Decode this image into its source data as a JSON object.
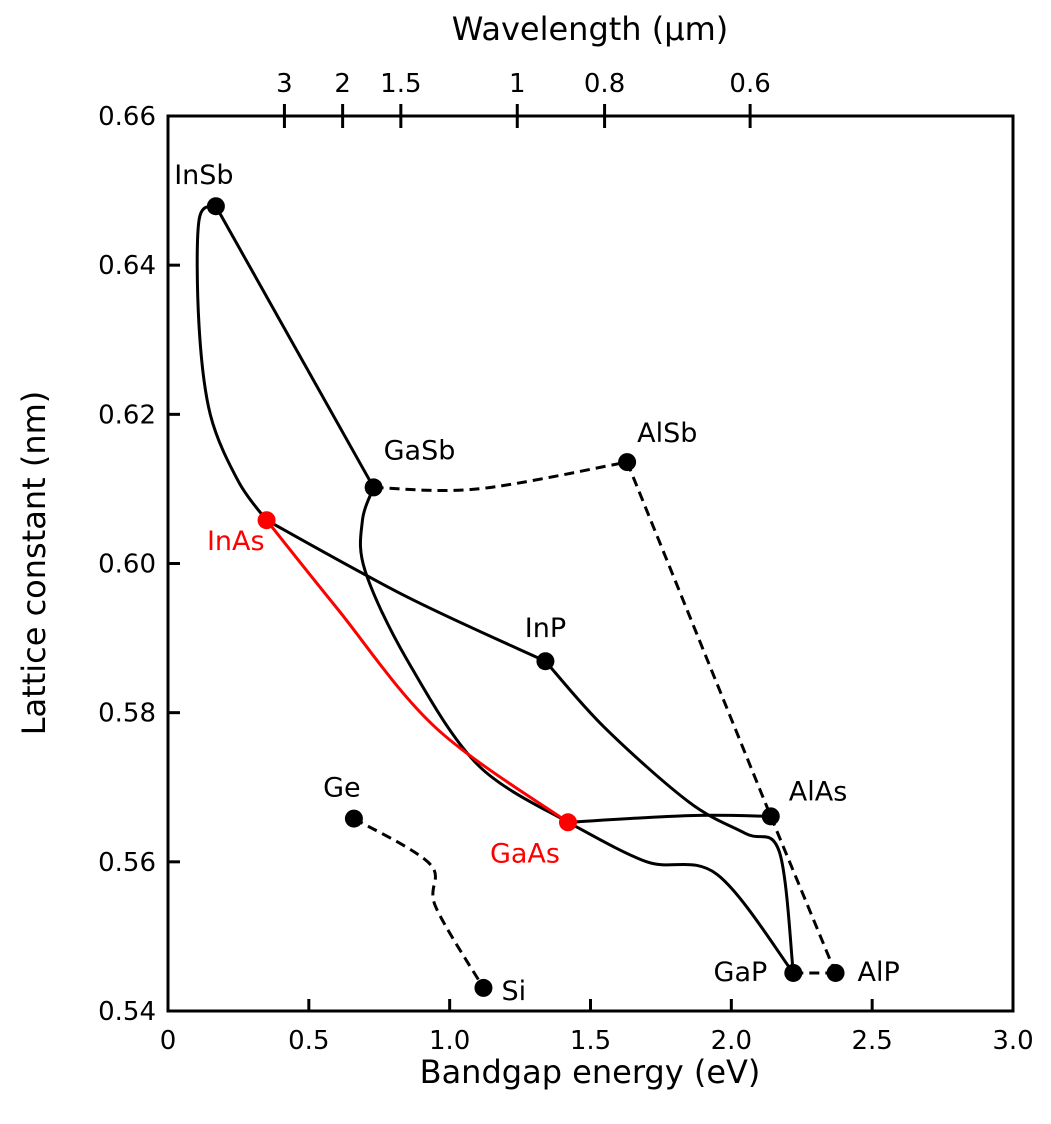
{
  "chart_data": {
    "type": "scatter",
    "xlabel": "Bandgap energy (eV)",
    "ylabel": "Lattice constant (nm)",
    "x2label": "Wavelength (μm)",
    "xlim": [
      0,
      3.0
    ],
    "ylim": [
      0.54,
      0.66
    ],
    "xticks": [
      0,
      0.5,
      1.0,
      1.5,
      2.0,
      2.5,
      3.0
    ],
    "xtick_labels": [
      "0",
      "0.5",
      "1.0",
      "1.5",
      "2.0",
      "2.5",
      "3.0"
    ],
    "yticks": [
      0.54,
      0.56,
      0.58,
      0.6,
      0.62,
      0.64,
      0.66
    ],
    "ytick_labels": [
      "0.54",
      "0.56",
      "0.58",
      "0.60",
      "0.62",
      "0.64",
      "0.66"
    ],
    "x2ticks": [
      3,
      2,
      1.5,
      1,
      0.8,
      0.6
    ],
    "x2tick_labels": [
      "3",
      "2",
      "1.5",
      "1",
      "0.8",
      "0.6"
    ],
    "grid": false,
    "points": [
      {
        "label": "InSb",
        "x": 0.17,
        "y": 0.6479,
        "color": "#000000"
      },
      {
        "label": "GaSb",
        "x": 0.73,
        "y": 0.6102,
        "color": "#000000"
      },
      {
        "label": "AlSb",
        "x": 1.63,
        "y": 0.6136,
        "color": "#000000"
      },
      {
        "label": "InAs",
        "x": 0.35,
        "y": 0.6058,
        "color": "#ff0000"
      },
      {
        "label": "InP",
        "x": 1.34,
        "y": 0.5869,
        "color": "#000000"
      },
      {
        "label": "GaAs",
        "x": 1.42,
        "y": 0.5653,
        "color": "#ff0000"
      },
      {
        "label": "AlAs",
        "x": 2.14,
        "y": 0.5661,
        "color": "#000000"
      },
      {
        "label": "Ge",
        "x": 0.66,
        "y": 0.5658,
        "color": "#000000"
      },
      {
        "label": "Si",
        "x": 1.12,
        "y": 0.5431,
        "color": "#000000"
      },
      {
        "label": "GaP",
        "x": 2.22,
        "y": 0.5451,
        "color": "#000000"
      },
      {
        "label": "AlP",
        "x": 2.37,
        "y": 0.5451,
        "color": "#000000"
      }
    ],
    "curves": [
      {
        "id": "InSb-InAs",
        "style": "solid",
        "color": "#000000",
        "points": [
          [
            0.17,
            0.6479
          ],
          [
            0.11,
            0.646
          ],
          [
            0.11,
            0.632
          ],
          [
            0.15,
            0.62
          ],
          [
            0.25,
            0.611
          ],
          [
            0.35,
            0.6058
          ]
        ]
      },
      {
        "id": "InSb-GaSb",
        "style": "solid",
        "color": "#000000",
        "points": [
          [
            0.17,
            0.6479
          ],
          [
            0.73,
            0.6102
          ]
        ]
      },
      {
        "id": "GaSb-AlSb",
        "style": "dashed",
        "color": "#000000",
        "points": [
          [
            0.73,
            0.6102
          ],
          [
            1.1,
            0.61
          ],
          [
            1.63,
            0.6136
          ]
        ]
      },
      {
        "id": "GaSb-GaAs",
        "style": "solid",
        "color": "#000000",
        "points": [
          [
            0.73,
            0.6102
          ],
          [
            0.69,
            0.6057
          ],
          [
            0.7,
            0.599
          ],
          [
            0.85,
            0.587
          ],
          [
            1.1,
            0.573
          ],
          [
            1.42,
            0.5653
          ]
        ]
      },
      {
        "id": "InAs-InP",
        "style": "solid",
        "color": "#000000",
        "points": [
          [
            0.35,
            0.6058
          ],
          [
            0.85,
            0.5955
          ],
          [
            1.34,
            0.5869
          ]
        ]
      },
      {
        "id": "InAs-GaAs",
        "style": "solid",
        "color": "#ff0000",
        "points": [
          [
            0.35,
            0.6058
          ],
          [
            0.6,
            0.594
          ],
          [
            0.95,
            0.578
          ],
          [
            1.42,
            0.5653
          ]
        ]
      },
      {
        "id": "AlSb-AlAs",
        "style": "dashed",
        "color": "#000000",
        "points": [
          [
            1.63,
            0.6136
          ],
          [
            2.14,
            0.5661
          ]
        ]
      },
      {
        "id": "InP-GaP",
        "style": "solid",
        "color": "#000000",
        "points": [
          [
            1.34,
            0.5869
          ],
          [
            1.55,
            0.578
          ],
          [
            1.85,
            0.568
          ],
          [
            2.05,
            0.5638
          ],
          [
            2.17,
            0.5614
          ],
          [
            2.22,
            0.5451
          ]
        ]
      },
      {
        "id": "GaAs-AlAs",
        "style": "mixed",
        "color": "#000000",
        "points": [
          [
            1.42,
            0.5653
          ],
          [
            1.85,
            0.5662
          ],
          [
            2.14,
            0.5661
          ]
        ]
      },
      {
        "id": "GaAs-GaP",
        "style": "mixed",
        "color": "#000000",
        "points": [
          [
            1.42,
            0.5653
          ],
          [
            1.7,
            0.56
          ],
          [
            1.95,
            0.5583
          ],
          [
            2.22,
            0.5451
          ]
        ]
      },
      {
        "id": "AlAs-AlP",
        "style": "dashed",
        "color": "#000000",
        "points": [
          [
            2.14,
            0.5661
          ],
          [
            2.37,
            0.5451
          ]
        ]
      },
      {
        "id": "GaP-AlP",
        "style": "dashed",
        "color": "#000000",
        "points": [
          [
            2.22,
            0.5451
          ],
          [
            2.37,
            0.5451
          ]
        ]
      },
      {
        "id": "Ge-Si",
        "style": "dashed",
        "color": "#000000",
        "points": [
          [
            0.66,
            0.5658
          ],
          [
            0.93,
            0.5597
          ],
          [
            0.95,
            0.554
          ],
          [
            1.12,
            0.5431
          ]
        ]
      }
    ]
  }
}
